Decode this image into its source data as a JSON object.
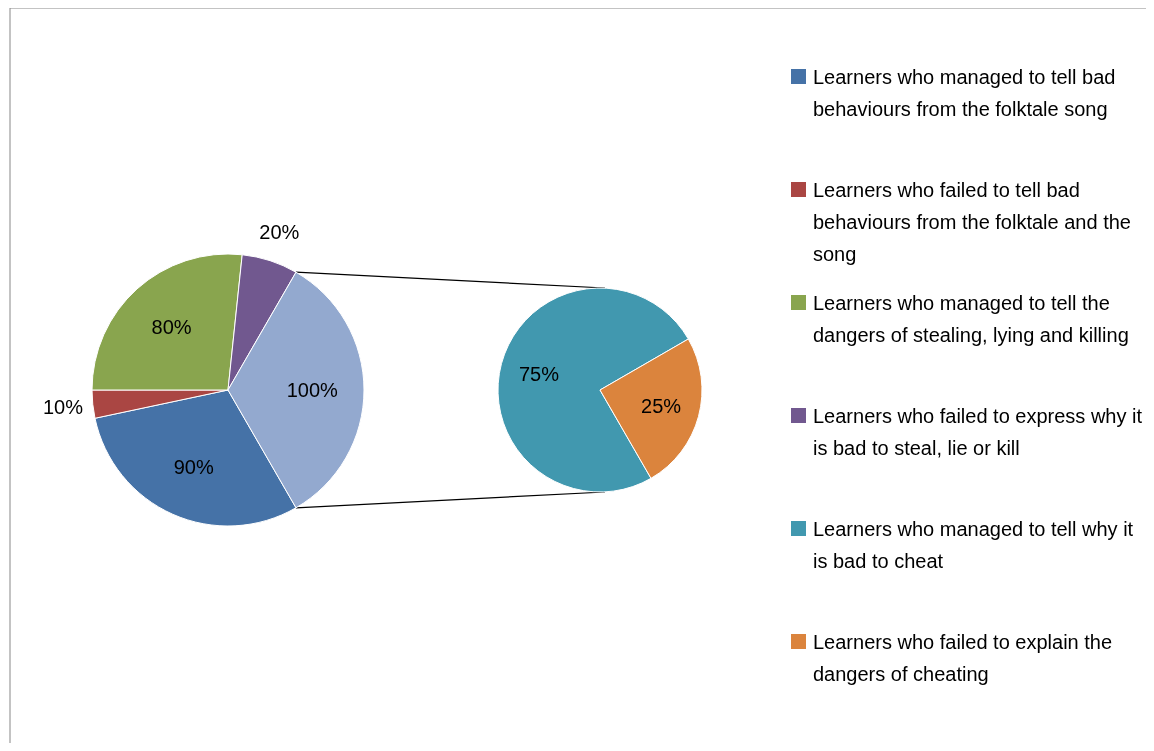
{
  "chart_data": [
    {
      "type": "pie",
      "categories": [
        "Learners who managed to tell bad behaviours from the folktale song",
        "Learners who failed to tell bad behaviours from the folktale and the song",
        "Learners who managed to tell the dangers of stealing, lying and killing",
        "Learners who failed to express why it is bad to steal, lie or kill",
        null
      ],
      "values": [
        90,
        10,
        80,
        20,
        100
      ],
      "colors": [
        "#4572a7",
        "#aa4643",
        "#89a54e",
        "#71588f",
        "#93a9cf"
      ],
      "value_labels": [
        "90%",
        "10%",
        "80%",
        "20%",
        "100%"
      ],
      "legend": "right"
    },
    {
      "type": "pie",
      "categories": [
        "Learners who managed to tell why it is bad to cheat",
        "Learners who failed to explain the dangers of cheating"
      ],
      "values": [
        75,
        25
      ],
      "colors": [
        "#4198af",
        "#db843d"
      ],
      "value_labels": [
        "75%",
        "25%"
      ],
      "legend": "right"
    }
  ]
}
